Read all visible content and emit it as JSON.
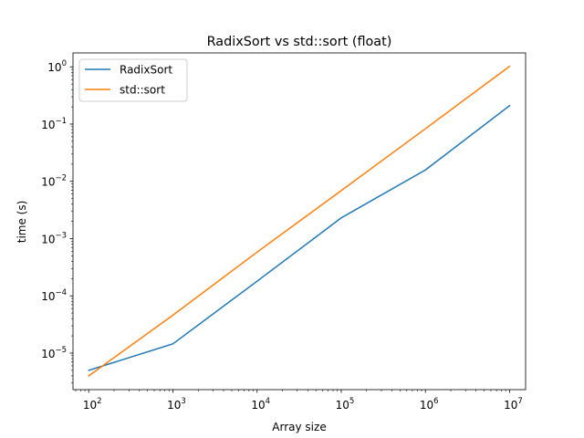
{
  "chart_data": {
    "type": "line",
    "title": "RadixSort vs std::sort (float)",
    "xlabel": "Array size",
    "ylabel": "time (s)",
    "xscale": "log",
    "yscale": "log",
    "xlim": [
      65,
      15500000
    ],
    "ylim": [
      2.3e-06,
      1.75
    ],
    "x": [
      100,
      1000,
      10000,
      100000,
      1000000,
      10000000
    ],
    "series": [
      {
        "name": "RadixSort",
        "color": "#1f77b4",
        "values": [
          5e-06,
          1.45e-05,
          0.00018,
          0.0023,
          0.0158,
          0.21
        ]
      },
      {
        "name": "std::sort",
        "color": "#ff7f0e",
        "values": [
          4e-06,
          4.6e-05,
          0.00058,
          0.0069,
          0.083,
          1.02
        ]
      }
    ],
    "xticks": [
      {
        "base": "10",
        "exp": "2"
      },
      {
        "base": "10",
        "exp": "3"
      },
      {
        "base": "10",
        "exp": "4"
      },
      {
        "base": "10",
        "exp": "5"
      },
      {
        "base": "10",
        "exp": "6"
      },
      {
        "base": "10",
        "exp": "7"
      }
    ],
    "yticks": [
      {
        "base": "10",
        "exp": "−5"
      },
      {
        "base": "10",
        "exp": "−4"
      },
      {
        "base": "10",
        "exp": "−3"
      },
      {
        "base": "10",
        "exp": "−2"
      },
      {
        "base": "10",
        "exp": "−1"
      },
      {
        "base": "10",
        "exp": "0"
      }
    ],
    "grid": false,
    "legend": "upper left"
  }
}
